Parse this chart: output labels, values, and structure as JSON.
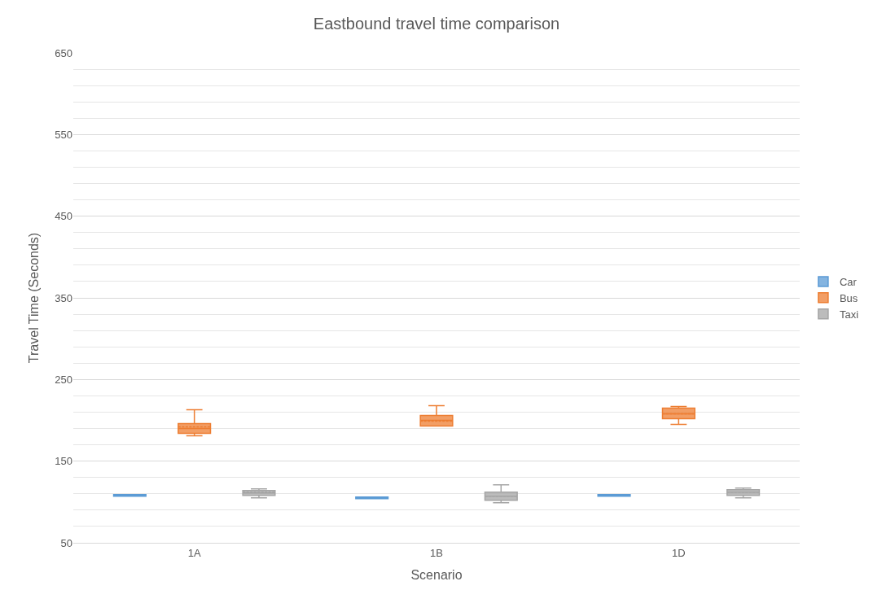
{
  "chart_data": {
    "type": "box",
    "title": "Eastbound travel time comparison",
    "xlabel": "Scenario",
    "ylabel": "Travel Time (Seconds)",
    "categories": [
      "1A",
      "1B",
      "1D"
    ],
    "series": [
      {
        "name": "Car",
        "color": "#5b9bd5",
        "boxes": [
          {
            "low": 107,
            "q1": 107,
            "median": 108,
            "q3": 109,
            "high": 109,
            "mean": 108
          },
          {
            "low": 104,
            "q1": 104,
            "median": 105,
            "q3": 106,
            "high": 106,
            "mean": 105
          },
          {
            "low": 107,
            "q1": 107,
            "median": 108,
            "q3": 109,
            "high": 109,
            "mean": 108
          }
        ]
      },
      {
        "name": "Bus",
        "color": "#ed7d31",
        "boxes": [
          {
            "low": 181,
            "q1": 184,
            "median": 190,
            "q3": 196,
            "high": 213,
            "mean": 192
          },
          {
            "low": 193,
            "q1": 193,
            "median": 200,
            "q3": 206,
            "high": 218,
            "mean": 199
          },
          {
            "low": 195,
            "q1": 202,
            "median": 208,
            "q3": 215,
            "high": 217,
            "mean": 208
          }
        ]
      },
      {
        "name": "Taxi",
        "color": "#a5a5a5",
        "boxes": [
          {
            "low": 105,
            "q1": 108,
            "median": 111,
            "q3": 114,
            "high": 116,
            "mean": 112
          },
          {
            "low": 99,
            "q1": 102,
            "median": 107,
            "q3": 112,
            "high": 121,
            "mean": 107
          },
          {
            "low": 105,
            "q1": 108,
            "median": 112,
            "q3": 115,
            "high": 117,
            "mean": 112
          }
        ]
      }
    ],
    "ylim": [
      50,
      650
    ],
    "yticks": [
      50,
      150,
      250,
      350,
      450,
      550,
      650
    ],
    "grid": "y",
    "legend": "right"
  }
}
